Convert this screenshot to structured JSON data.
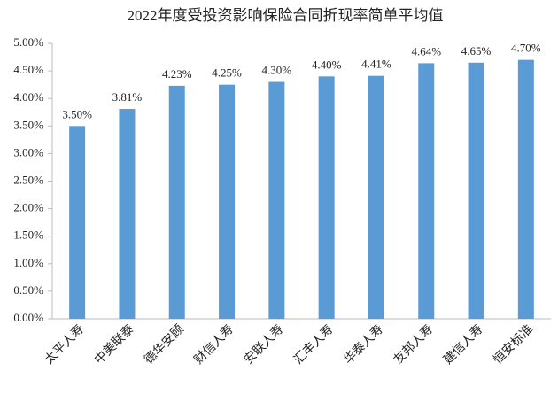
{
  "chart_data": {
    "type": "bar",
    "title": "2022年度受投资影响保险合同折现率简单平均值",
    "categories": [
      "太平人寿",
      "中美联泰",
      "德华安顾",
      "财信人寿",
      "安联人寿",
      "汇丰人寿",
      "华泰人寿",
      "友邦人寿",
      "建信人寿",
      "恒安标准"
    ],
    "values": [
      3.5,
      3.81,
      4.23,
      4.25,
      4.3,
      4.4,
      4.41,
      4.64,
      4.65,
      4.7
    ],
    "value_labels": [
      "3.50%",
      "3.81%",
      "4.23%",
      "4.25%",
      "4.30%",
      "4.40%",
      "4.41%",
      "4.64%",
      "4.65%",
      "4.70%"
    ],
    "color": "#5b9bd5",
    "ylim": [
      0,
      5
    ],
    "yticks": [
      {
        "value": 0,
        "label": "0.00%"
      },
      {
        "value": 0.5,
        "label": "0.50%"
      },
      {
        "value": 1,
        "label": "1.00%"
      },
      {
        "value": 1.5,
        "label": "1.50%"
      },
      {
        "value": 2,
        "label": "2.00%"
      },
      {
        "value": 2.5,
        "label": "2.50%"
      },
      {
        "value": 3,
        "label": "3.00%"
      },
      {
        "value": 3.5,
        "label": "3.50%"
      },
      {
        "value": 4,
        "label": "4.00%"
      },
      {
        "value": 4.5,
        "label": "4.50%"
      },
      {
        "value": 5,
        "label": "5.00%"
      }
    ],
    "grid": false
  }
}
